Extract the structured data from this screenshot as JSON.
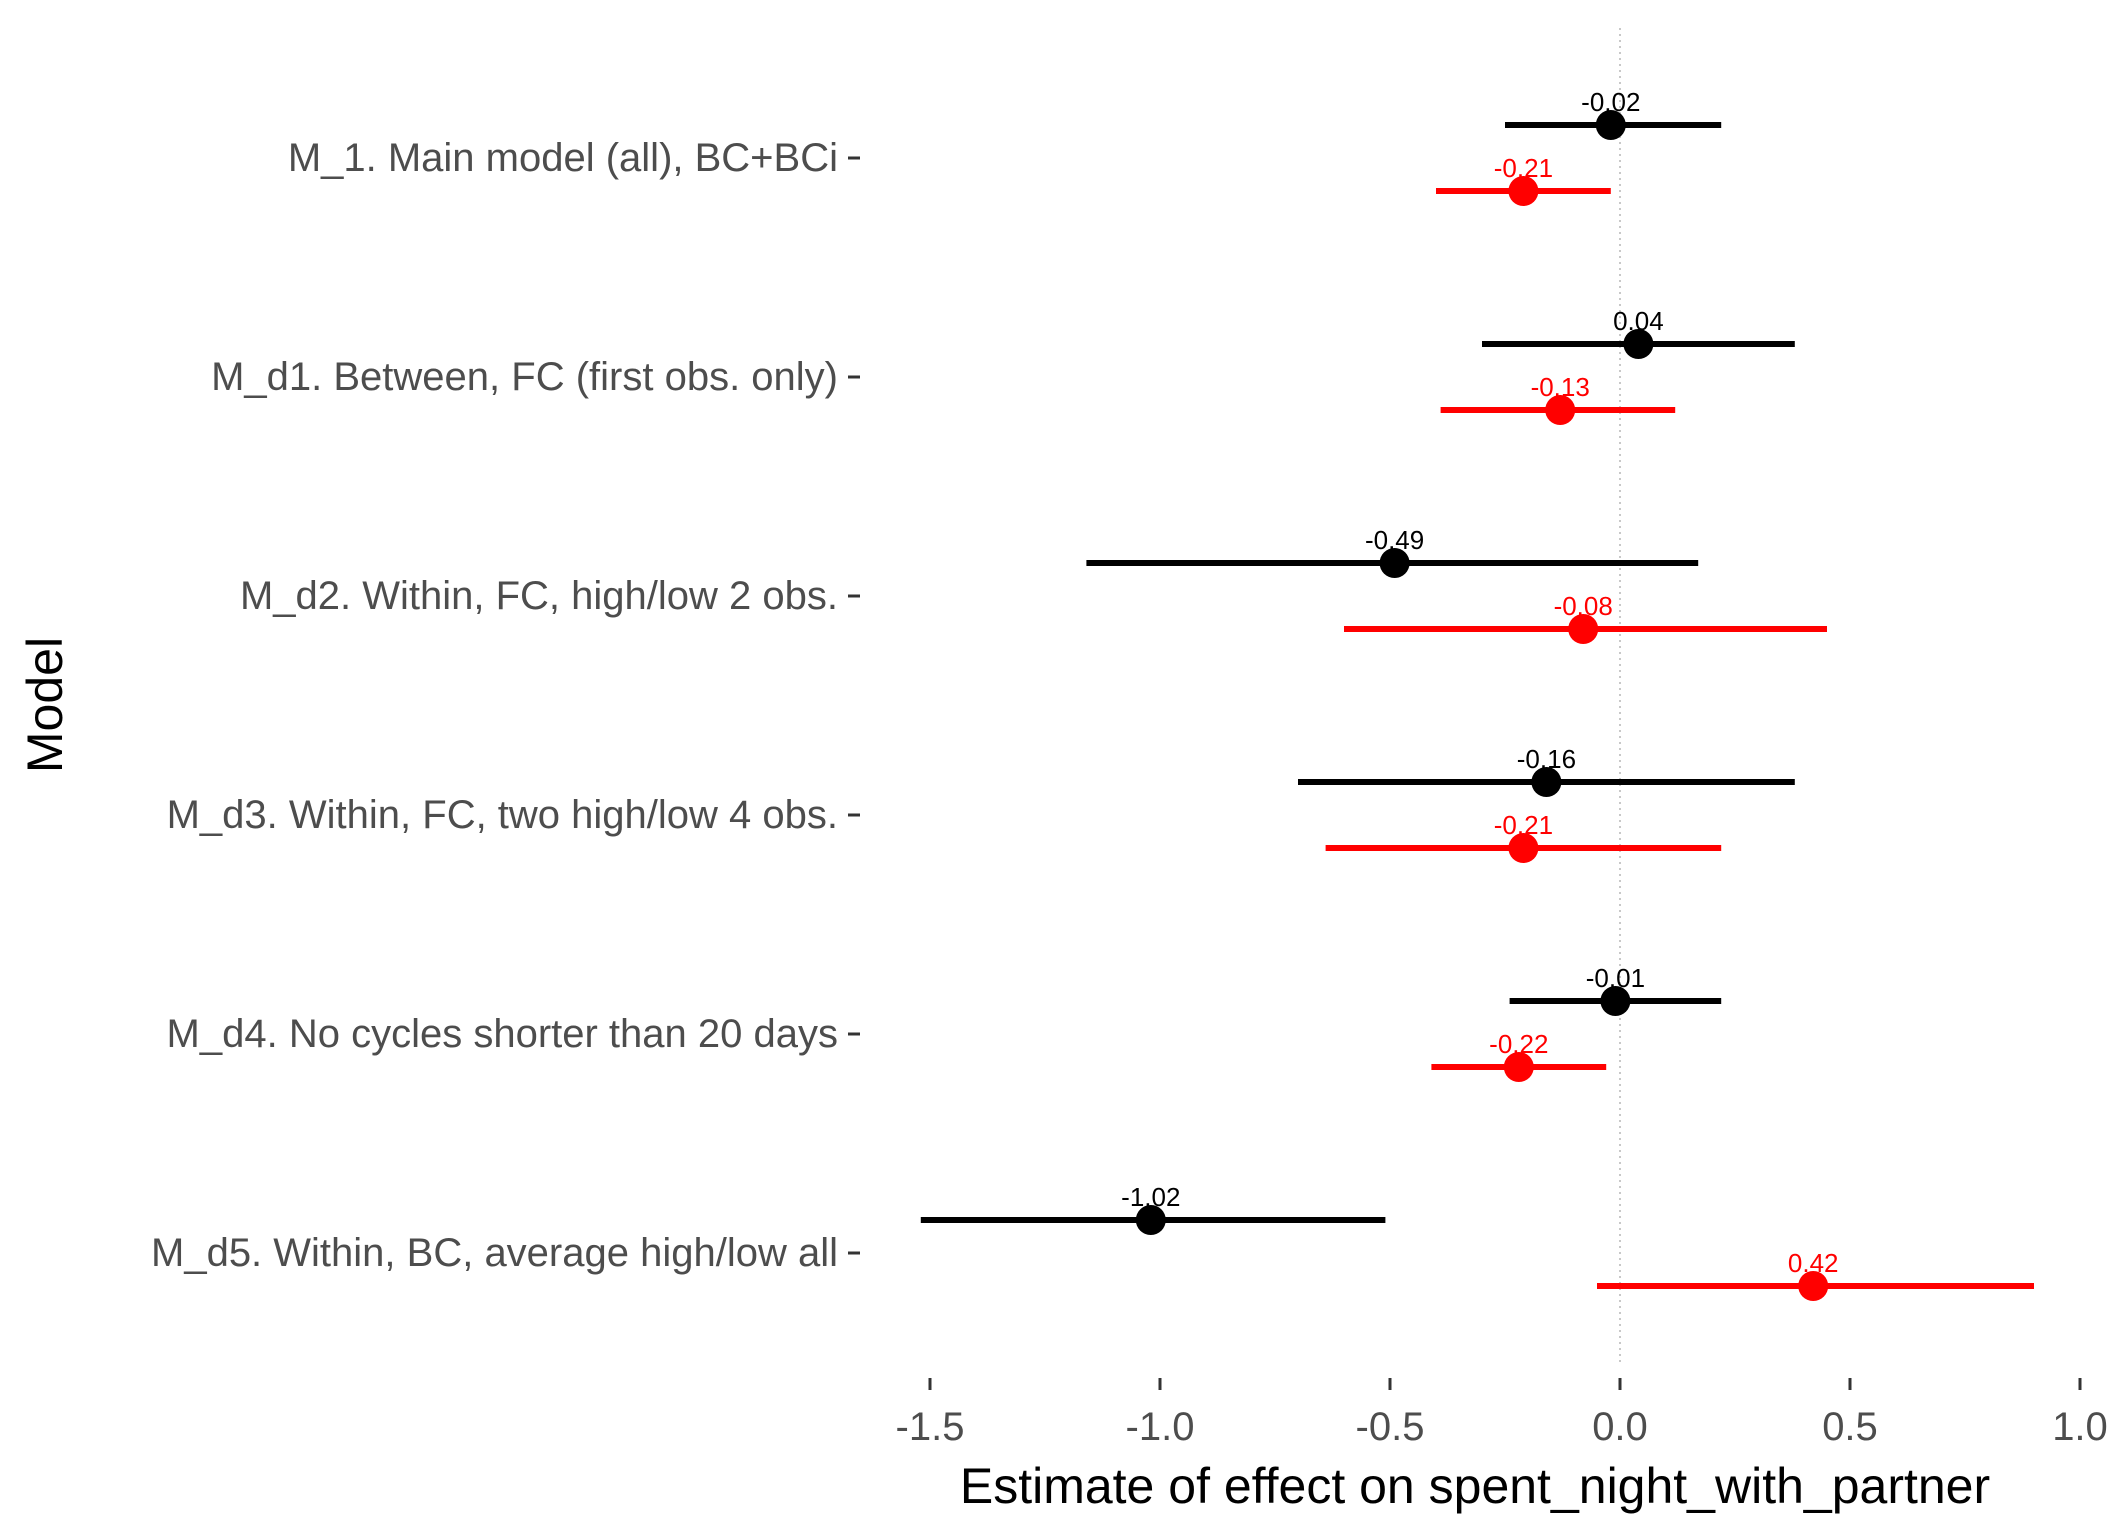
{
  "chart_data": {
    "type": "scatter",
    "subtype": "coefficient-plot-with-intervals",
    "xlabel": "Estimate of effect on spent_night_with_partner",
    "ylabel": "Model",
    "xlim": [
      -1.55,
      1.0
    ],
    "xticks": [
      -1.5,
      -1.0,
      -0.5,
      0.0,
      0.5,
      1.0
    ],
    "xtick_labels": [
      "-1.5",
      "-1.0",
      "-0.5",
      "0.0",
      "0.5",
      "1.0"
    ],
    "reference_line": 0,
    "grid": false,
    "categories": [
      "M_1. Main model (all), BC+BCi",
      "M_d1. Between, FC (first obs. only)",
      "M_d2. Within, FC, high/low 2 obs.",
      "M_d3. Within, FC, two high/low 4 obs.",
      "M_d4. No cycles shorter than 20 days",
      "M_d5. Within, BC, average high/low all"
    ],
    "series": [
      {
        "color": "#000000",
        "estimates": [
          -0.02,
          0.04,
          -0.49,
          -0.16,
          -0.01,
          -1.02
        ],
        "labels": [
          "-0.02",
          "0.04",
          "-0.49",
          "-0.16",
          "-0.01",
          "-1.02"
        ],
        "lower": [
          -0.25,
          -0.3,
          -1.16,
          -0.7,
          -0.24,
          -1.52
        ],
        "upper": [
          0.22,
          0.38,
          0.17,
          0.38,
          0.22,
          -0.51
        ]
      },
      {
        "color": "#ff0000",
        "estimates": [
          -0.21,
          -0.13,
          -0.08,
          -0.21,
          -0.22,
          0.42
        ],
        "labels": [
          "-0.21",
          "-0.13",
          "-0.08",
          "-0.21",
          "-0.22",
          "0.42"
        ],
        "lower": [
          -0.4,
          -0.39,
          -0.6,
          -0.64,
          -0.41,
          -0.05
        ],
        "upper": [
          -0.02,
          0.12,
          0.45,
          0.22,
          -0.03,
          0.9
        ]
      }
    ]
  }
}
